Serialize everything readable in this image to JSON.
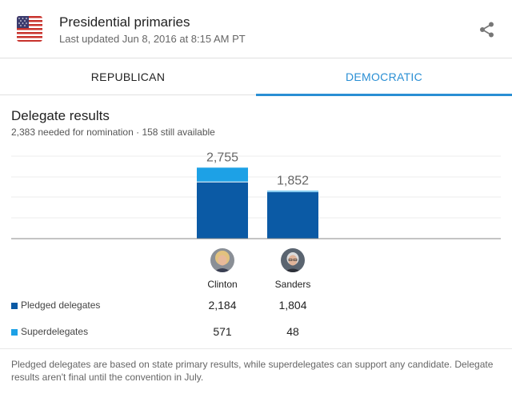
{
  "header": {
    "title": "Presidential primaries",
    "updated": "Last updated Jun 8, 2016 at 8:15 AM PT"
  },
  "tabs": [
    {
      "label": "REPUBLICAN",
      "active": false
    },
    {
      "label": "DEMOCRATIC",
      "active": true
    }
  ],
  "section": {
    "title": "Delegate results",
    "subtitle": "2,383 needed for nomination · 158 still available"
  },
  "colors": {
    "pledged": "#0b5aa5",
    "super": "#1da1e6",
    "accent": "#2a8fd4"
  },
  "chart_data": {
    "type": "bar",
    "stacked": true,
    "categories": [
      "Clinton",
      "Sanders"
    ],
    "series": [
      {
        "name": "Pledged delegates",
        "values": [
          2184,
          1804
        ]
      },
      {
        "name": "Superdelegates",
        "values": [
          571,
          48
        ]
      }
    ],
    "totals": [
      "2,755",
      "1,852"
    ],
    "ylim": [
      0,
      3200
    ],
    "grid": true
  },
  "legend": {
    "pledged_label": "Pledged delegates",
    "super_label": "Superdelegates"
  },
  "values": {
    "pledged": [
      "2,184",
      "1,804"
    ],
    "super": [
      "571",
      "48"
    ]
  },
  "footnote": "Pledged delegates are based on state primary results, while superdelegates can support any candidate. Delegate results aren't final until the convention in July."
}
